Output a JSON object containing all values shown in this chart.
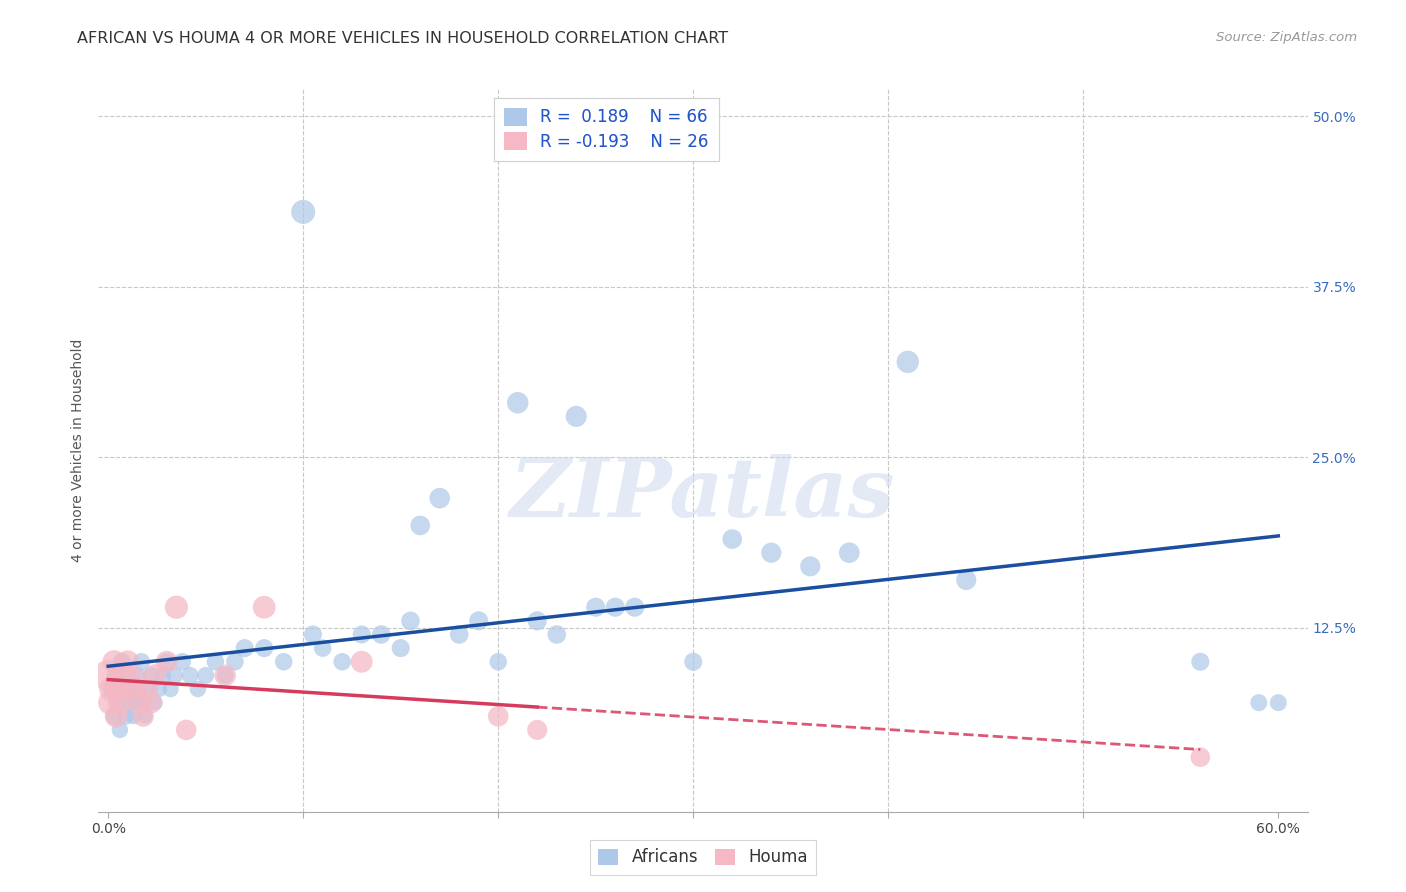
{
  "title": "AFRICAN VS HOUMA 4 OR MORE VEHICLES IN HOUSEHOLD CORRELATION CHART",
  "source": "Source: ZipAtlas.com",
  "ylabel": "4 or more Vehicles in Household",
  "xlim": [
    -0.005,
    0.615
  ],
  "ylim": [
    -0.01,
    0.52
  ],
  "xticks": [
    0.0,
    0.1,
    0.2,
    0.3,
    0.4,
    0.5,
    0.6
  ],
  "xtick_labels_show": [
    "0.0%",
    "",
    "",
    "",
    "",
    "",
    "60.0%"
  ],
  "yticks_right": [
    0.0,
    0.125,
    0.25,
    0.375,
    0.5
  ],
  "ytick_labels_right": [
    "",
    "12.5%",
    "25.0%",
    "37.5%",
    "50.0%"
  ],
  "african_color": "#adc8e8",
  "houma_color": "#f5b8c4",
  "african_line_color": "#1a4fa0",
  "houma_line_color": "#d63b5e",
  "african_R": 0.189,
  "african_N": 66,
  "houma_R": -0.193,
  "houma_N": 26,
  "legend_label_african": "Africans",
  "legend_label_houma": "Houma",
  "watermark": "ZIPatlas",
  "background_color": "#ffffff",
  "grid_color": "#c8c8c8",
  "african_x": [
    0.002,
    0.003,
    0.004,
    0.005,
    0.006,
    0.007,
    0.008,
    0.009,
    0.01,
    0.011,
    0.012,
    0.013,
    0.014,
    0.015,
    0.016,
    0.017,
    0.018,
    0.019,
    0.02,
    0.022,
    0.024,
    0.026,
    0.028,
    0.03,
    0.032,
    0.034,
    0.038,
    0.042,
    0.046,
    0.05,
    0.055,
    0.06,
    0.065,
    0.07,
    0.08,
    0.09,
    0.1,
    0.105,
    0.11,
    0.12,
    0.13,
    0.14,
    0.15,
    0.155,
    0.16,
    0.17,
    0.18,
    0.19,
    0.2,
    0.21,
    0.22,
    0.23,
    0.24,
    0.25,
    0.26,
    0.27,
    0.3,
    0.32,
    0.34,
    0.36,
    0.38,
    0.41,
    0.44,
    0.56,
    0.59,
    0.6
  ],
  "african_y": [
    0.08,
    0.06,
    0.09,
    0.07,
    0.05,
    0.1,
    0.08,
    0.06,
    0.09,
    0.07,
    0.08,
    0.06,
    0.07,
    0.09,
    0.08,
    0.1,
    0.07,
    0.06,
    0.08,
    0.09,
    0.07,
    0.08,
    0.09,
    0.1,
    0.08,
    0.09,
    0.1,
    0.09,
    0.08,
    0.09,
    0.1,
    0.09,
    0.1,
    0.11,
    0.11,
    0.1,
    0.43,
    0.12,
    0.11,
    0.1,
    0.12,
    0.12,
    0.11,
    0.13,
    0.2,
    0.22,
    0.12,
    0.13,
    0.1,
    0.29,
    0.13,
    0.12,
    0.28,
    0.14,
    0.14,
    0.14,
    0.1,
    0.19,
    0.18,
    0.17,
    0.18,
    0.32,
    0.16,
    0.1,
    0.07,
    0.07
  ],
  "african_sizes": [
    200,
    150,
    180,
    160,
    140,
    170,
    190,
    150,
    160,
    140,
    150,
    130,
    140,
    150,
    140,
    160,
    130,
    120,
    140,
    150,
    130,
    140,
    150,
    160,
    140,
    150,
    160,
    150,
    140,
    150,
    160,
    150,
    160,
    170,
    170,
    160,
    300,
    170,
    160,
    160,
    170,
    180,
    170,
    180,
    200,
    220,
    180,
    190,
    160,
    240,
    190,
    180,
    230,
    190,
    190,
    190,
    170,
    200,
    210,
    210,
    220,
    260,
    210,
    170,
    150,
    150
  ],
  "houma_x": [
    0.0,
    0.001,
    0.002,
    0.003,
    0.004,
    0.005,
    0.006,
    0.007,
    0.008,
    0.01,
    0.012,
    0.014,
    0.016,
    0.018,
    0.02,
    0.022,
    0.024,
    0.03,
    0.035,
    0.04,
    0.06,
    0.08,
    0.13,
    0.2,
    0.22,
    0.56
  ],
  "houma_y": [
    0.09,
    0.07,
    0.08,
    0.1,
    0.06,
    0.08,
    0.07,
    0.09,
    0.08,
    0.1,
    0.09,
    0.08,
    0.07,
    0.06,
    0.08,
    0.07,
    0.09,
    0.1,
    0.14,
    0.05,
    0.09,
    0.14,
    0.1,
    0.06,
    0.05,
    0.03
  ],
  "houma_sizes": [
    500,
    300,
    350,
    280,
    260,
    320,
    290,
    310,
    280,
    270,
    260,
    250,
    240,
    230,
    250,
    240,
    260,
    250,
    280,
    220,
    240,
    270,
    250,
    220,
    210,
    200
  ],
  "houma_line_solid_end": 0.22,
  "african_line_start": 0.0,
  "african_line_end": 0.6,
  "houma_line_start": 0.0,
  "houma_line_end": 0.56,
  "title_fontsize": 11.5,
  "axis_label_fontsize": 10,
  "tick_fontsize": 10,
  "legend_fontsize": 12,
  "source_fontsize": 9.5
}
